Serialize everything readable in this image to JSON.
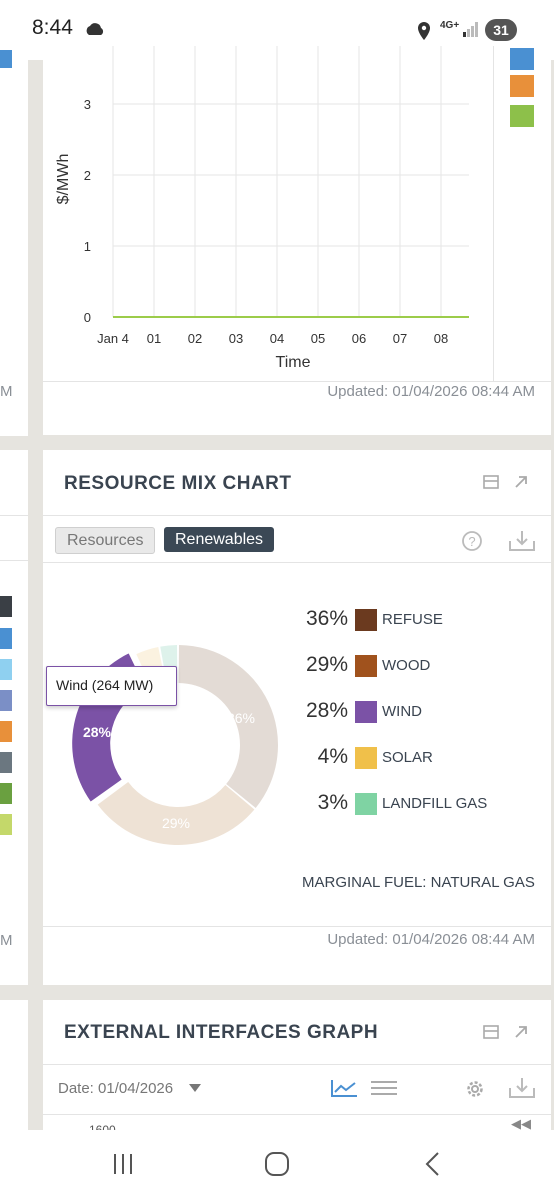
{
  "status_bar": {
    "time": "8:44",
    "network": "4G+",
    "battery": "31"
  },
  "price_chart": {
    "ylabel": "$/MWh",
    "xlabel": "Time",
    "yticks": [
      "3",
      "2",
      "1",
      "0"
    ],
    "xticks": [
      "Jan 4",
      "01",
      "02",
      "03",
      "04",
      "05",
      "06",
      "07",
      "08"
    ],
    "updated": "Updated: 01/04/2026 08:44 AM",
    "legend_colors": [
      "#4a90d2",
      "#e8903a",
      "#8dc04a"
    ]
  },
  "resource_mix": {
    "title": "RESOURCE MIX CHART",
    "tabs": [
      {
        "label": "Resources",
        "active": false
      },
      {
        "label": "Renewables",
        "active": true
      }
    ],
    "tooltip": "Wind (264 MW)",
    "legend": [
      {
        "pct": "36%",
        "label": "REFUSE",
        "color": "#6b3a1f"
      },
      {
        "pct": "29%",
        "label": "WOOD",
        "color": "#a0521d"
      },
      {
        "pct": "28%",
        "label": "WIND",
        "color": "#7b52a6"
      },
      {
        "pct": "4%",
        "label": "SOLAR",
        "color": "#f0c04a"
      },
      {
        "pct": "3%",
        "label": "LANDFILL GAS",
        "color": "#7fd3a3"
      }
    ],
    "donut_labels": [
      "36%",
      "29%",
      "28%"
    ],
    "marginal_fuel": "MARGINAL FUEL: NATURAL GAS",
    "updated": "Updated: 01/04/2026 08:44 AM"
  },
  "chart_data": {
    "type": "pie",
    "title": "RESOURCE MIX CHART",
    "categories": [
      "REFUSE",
      "WOOD",
      "WIND",
      "SOLAR",
      "LANDFILL GAS"
    ],
    "values": [
      36,
      29,
      28,
      4,
      3
    ]
  },
  "external_interfaces": {
    "title": "EXTERNAL INTERFACES GRAPH",
    "date_label": "Date: 01/04/2026",
    "ytick_partial": "1600"
  },
  "left_panel": {
    "updated_fragment": "M"
  },
  "left_swatches": [
    "#3a3f45",
    "#4a90d2",
    "#8fd0f0",
    "#7b8fc6",
    "#e8903a",
    "#6b7780",
    "#6aa040",
    "#c4d86a"
  ]
}
